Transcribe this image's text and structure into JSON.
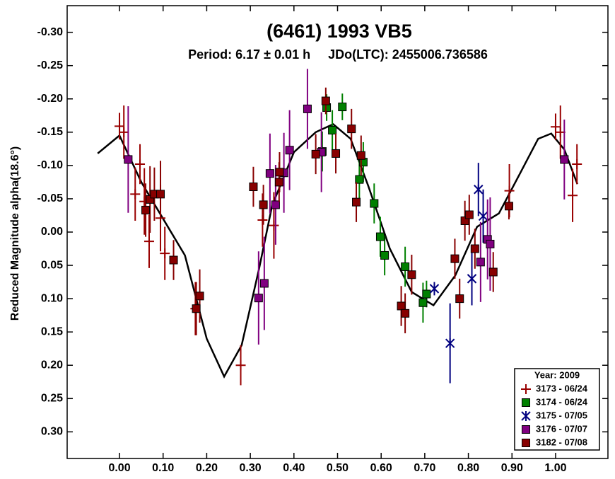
{
  "chart_data": {
    "type": "scatter",
    "title": "(6461) 1993 VB5",
    "subtitle": "Period: 6.17 ± 0.01 h     JDo(LTC): 2455006.736586",
    "ylabel": "Reduced Magnitude alpha(18.6°)",
    "xlim": [
      -0.12,
      1.12
    ],
    "ylim": [
      0.34,
      -0.34
    ],
    "xticks": [
      {
        "value": 0,
        "label": "0.00"
      },
      {
        "value": 0.1,
        "label": "0.10"
      },
      {
        "value": 0.2,
        "label": "0.20"
      },
      {
        "value": 0.3,
        "label": "0.30"
      },
      {
        "value": 0.4,
        "label": "0.40"
      },
      {
        "value": 0.5,
        "label": "0.50"
      },
      {
        "value": 0.6,
        "label": "0.60"
      },
      {
        "value": 0.7,
        "label": "0.70"
      },
      {
        "value": 0.8,
        "label": "0.80"
      },
      {
        "value": 0.9,
        "label": "0.90"
      },
      {
        "value": 1,
        "label": "1.00"
      }
    ],
    "yticks": [
      {
        "value": -0.3,
        "label": "-0.30"
      },
      {
        "value": -0.25,
        "label": "-0.25"
      },
      {
        "value": -0.2,
        "label": "-0.20"
      },
      {
        "value": -0.15,
        "label": "-0.15"
      },
      {
        "value": -0.1,
        "label": "-0.10"
      },
      {
        "value": -0.05,
        "label": "-0.05"
      },
      {
        "value": 0,
        "label": "0.00"
      },
      {
        "value": 0.05,
        "label": "0.05"
      },
      {
        "value": 0.1,
        "label": "0.10"
      },
      {
        "value": 0.15,
        "label": "0.15"
      },
      {
        "value": 0.2,
        "label": "0.20"
      },
      {
        "value": 0.25,
        "label": "0.25"
      },
      {
        "value": 0.3,
        "label": "0.30"
      }
    ],
    "legend_title": "Year: 2009",
    "legend": "lower right",
    "series": [
      {
        "name": "3173 - 06/24",
        "color": "#990000",
        "marker": "plus",
        "x": [
          0.0,
          0.01,
          0.036,
          0.047,
          0.057,
          0.068,
          0.094,
          0.104,
          0.174,
          0.278,
          0.328,
          0.354,
          0.894,
          1.0,
          1.011,
          1.039,
          1.049
        ],
        "values": [
          -0.159,
          -0.15,
          -0.057,
          -0.102,
          -0.046,
          0.014,
          -0.021,
          0.032,
          0.115,
          0.2,
          -0.018,
          -0.01,
          -0.062,
          -0.158,
          -0.15,
          -0.055,
          -0.102
        ],
        "errors": [
          0.02,
          0.04,
          0.04,
          0.03,
          0.05,
          0.04,
          0.05,
          0.04,
          0.04,
          0.03,
          0.04,
          0.05,
          0.04,
          0.02,
          0.04,
          0.04,
          0.03
        ]
      },
      {
        "name": "3174 - 06/24",
        "color": "#008000",
        "marker": "square",
        "x": [
          0.465,
          0.475,
          0.488,
          0.511,
          0.55,
          0.559,
          0.584,
          0.598,
          0.608,
          0.655,
          0.696,
          0.704
        ],
        "values": [
          -0.121,
          -0.187,
          -0.153,
          -0.188,
          -0.079,
          -0.105,
          -0.043,
          0.007,
          0.035,
          0.052,
          0.106,
          0.093
        ],
        "errors": [
          0.03,
          0.02,
          0.03,
          0.02,
          0.03,
          0.03,
          0.03,
          0.03,
          0.03,
          0.03,
          0.03,
          0.02
        ]
      },
      {
        "name": "3175 - 07/05",
        "color": "#000080",
        "marker": "asterisk",
        "x": [
          0.722,
          0.758,
          0.808,
          0.823,
          0.834
        ],
        "values": [
          0.085,
          0.167,
          0.07,
          -0.064,
          -0.024
        ],
        "errors": [
          0.01,
          0.06,
          0.04,
          0.04,
          0.04
        ]
      },
      {
        "name": "3176 - 07/07",
        "color": "#800080",
        "marker": "square",
        "x": [
          0.02,
          0.319,
          0.332,
          0.345,
          0.358,
          0.377,
          0.39,
          0.431,
          0.463,
          0.828,
          0.844,
          0.85,
          1.02
        ],
        "values": [
          -0.109,
          0.099,
          0.077,
          -0.088,
          -0.041,
          -0.089,
          -0.123,
          -0.185,
          -0.12,
          0.045,
          0.011,
          0.018,
          -0.109
        ],
        "errors": [
          0.08,
          0.07,
          0.07,
          0.06,
          0.06,
          0.06,
          0.06,
          0.06,
          0.06,
          0.06,
          0.06,
          0.07,
          0.06
        ]
      },
      {
        "name": "3182 - 07/08",
        "color": "#880000",
        "marker": "square",
        "x": [
          0.06,
          0.07,
          0.08,
          0.094,
          0.124,
          0.176,
          0.184,
          0.307,
          0.33,
          0.366,
          0.367,
          0.45,
          0.473,
          0.496,
          0.532,
          0.543,
          0.554,
          0.646,
          0.655,
          0.67,
          0.769,
          0.78,
          0.792,
          0.802,
          0.815,
          0.857,
          0.893
        ],
        "values": [
          -0.033,
          -0.049,
          -0.057,
          -0.057,
          0.042,
          0.115,
          0.096,
          -0.068,
          -0.041,
          -0.075,
          -0.09,
          -0.117,
          -0.197,
          -0.118,
          -0.155,
          -0.045,
          -0.115,
          0.111,
          0.122,
          0.064,
          0.04,
          0.1,
          -0.017,
          -0.026,
          0.025,
          0.06,
          -0.039
        ],
        "errors": [
          0.04,
          0.05,
          0.04,
          0.05,
          0.03,
          0.04,
          0.04,
          0.03,
          0.03,
          0.03,
          0.03,
          0.03,
          0.02,
          0.03,
          0.03,
          0.03,
          0.03,
          0.03,
          0.03,
          0.03,
          0.03,
          0.03,
          0.03,
          0.03,
          0.03,
          0.03,
          0.02
        ]
      }
    ],
    "fit": {
      "color": "#000000",
      "x": [
        -0.05,
        0.0,
        0.05,
        0.1,
        0.15,
        0.2,
        0.24,
        0.28,
        0.32,
        0.35,
        0.4,
        0.45,
        0.49,
        0.53,
        0.57,
        0.62,
        0.67,
        0.72,
        0.77,
        0.82,
        0.87,
        0.92,
        0.96,
        0.99,
        1.02,
        1.05
      ],
      "values": [
        -0.118,
        -0.145,
        -0.075,
        -0.02,
        0.035,
        0.16,
        0.217,
        0.17,
        0.055,
        -0.04,
        -0.12,
        -0.15,
        -0.162,
        -0.14,
        -0.07,
        0.025,
        0.09,
        0.11,
        0.065,
        -0.008,
        -0.028,
        -0.09,
        -0.14,
        -0.148,
        -0.124,
        -0.072
      ]
    }
  }
}
